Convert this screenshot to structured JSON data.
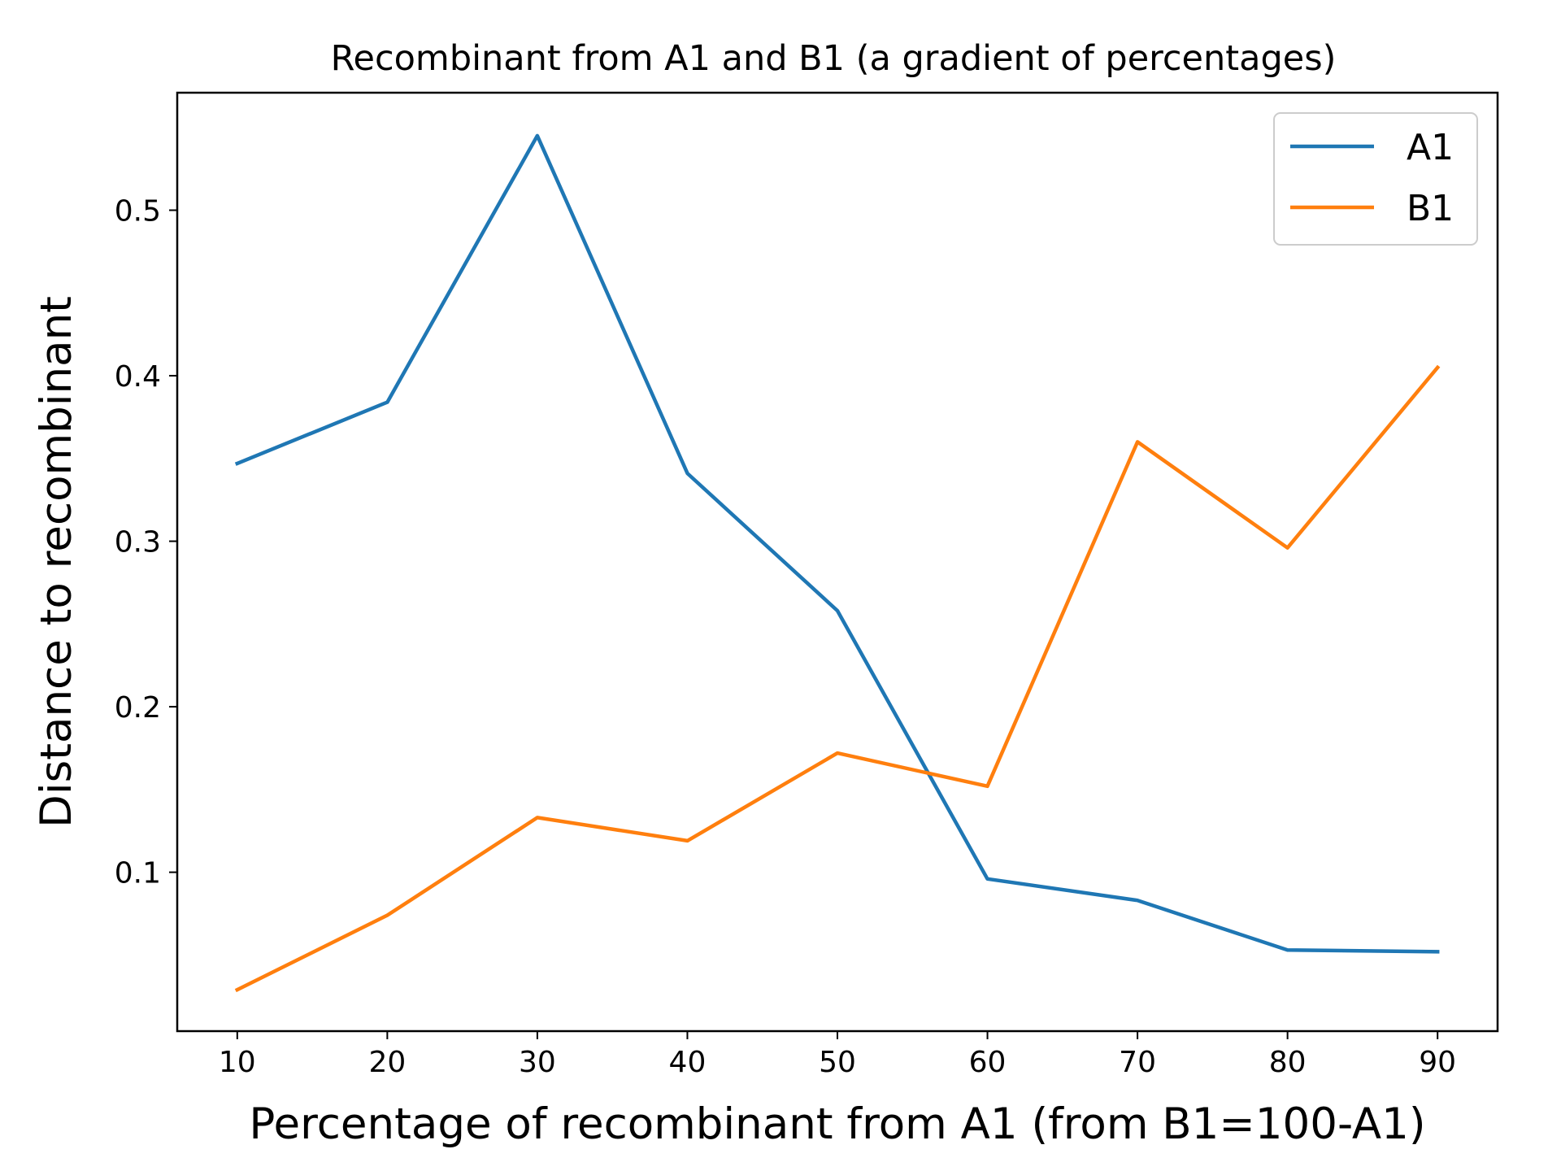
{
  "chart_data": {
    "type": "line",
    "title": "Recombinant from A1 and B1 (a gradient of percentages)",
    "xlabel": "Percentage of recombinant from A1 (from B1=100-A1)",
    "ylabel": "Distance to recombinant",
    "x": [
      10,
      20,
      30,
      40,
      50,
      60,
      70,
      80,
      90
    ],
    "xticks": [
      "10",
      "20",
      "30",
      "40",
      "50",
      "60",
      "70",
      "80",
      "90"
    ],
    "yticks": [
      "0.1",
      "0.2",
      "0.3",
      "0.4",
      "0.5"
    ],
    "xlim": [
      6,
      94
    ],
    "ylim": [
      0.004,
      0.571
    ],
    "series": [
      {
        "name": "A1",
        "color": "#1f77b4",
        "values": [
          0.347,
          0.384,
          0.545,
          0.341,
          0.258,
          0.096,
          0.083,
          0.053,
          0.052
        ]
      },
      {
        "name": "B1",
        "color": "#ff7f0e",
        "values": [
          0.029,
          0.074,
          0.133,
          0.119,
          0.172,
          0.152,
          0.36,
          0.296,
          0.405
        ]
      }
    ],
    "legend_position": "top-right",
    "grid": false
  }
}
